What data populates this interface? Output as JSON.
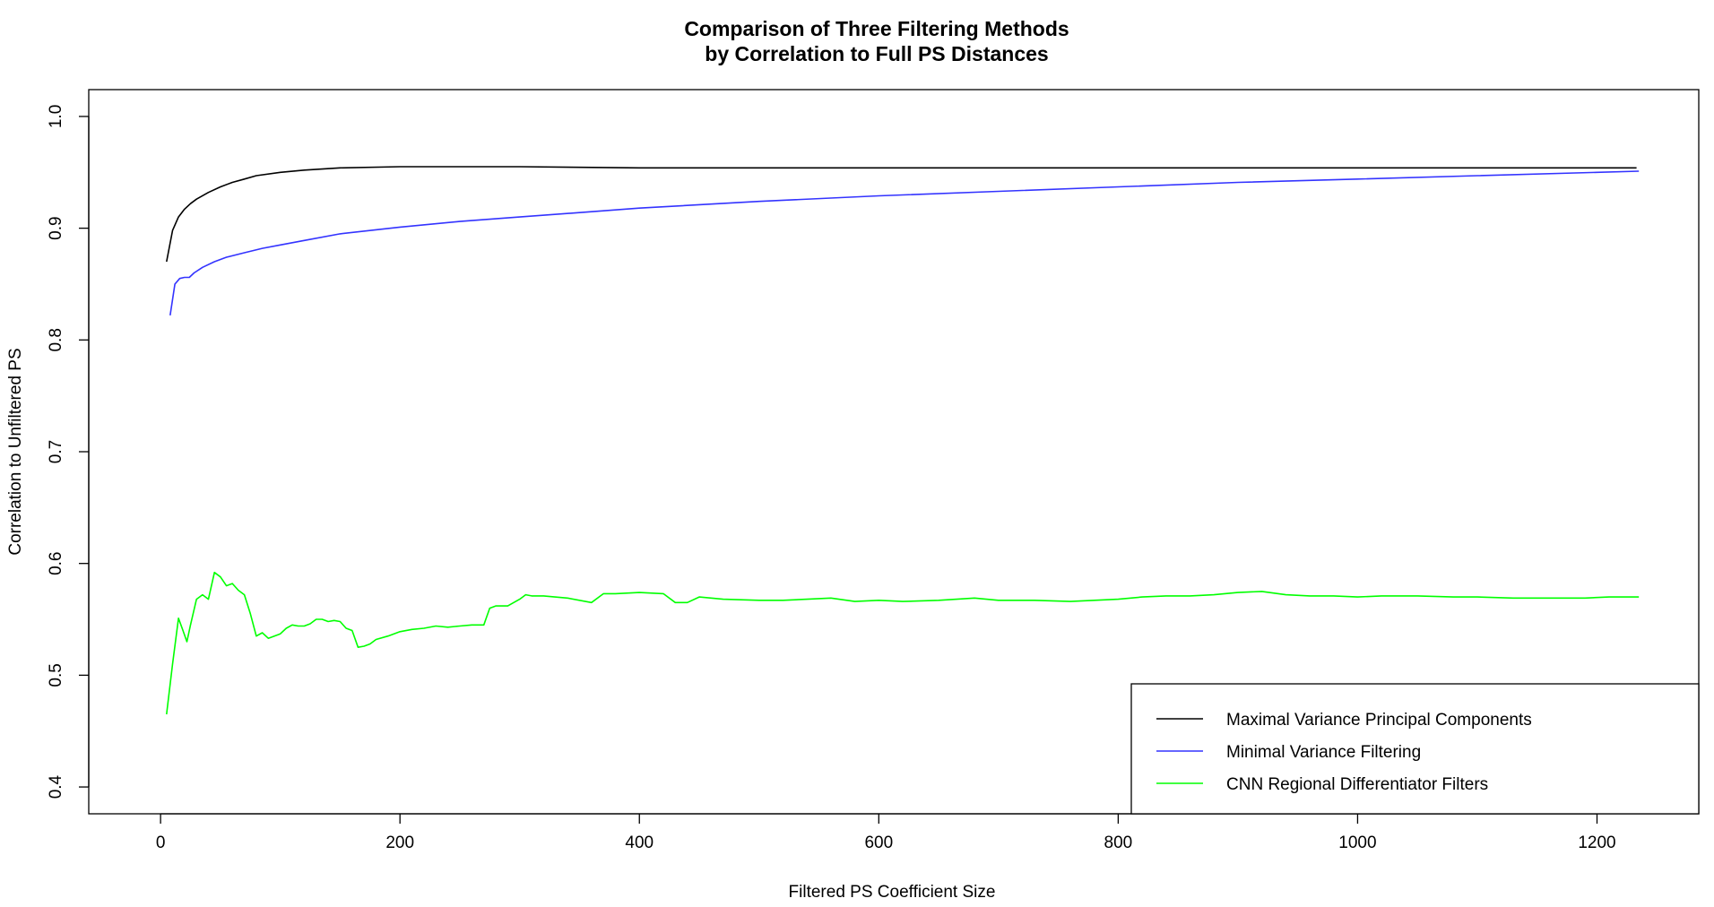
{
  "chart_data": {
    "type": "line",
    "title_line1": "Comparison of Three Filtering Methods",
    "title_line2": "by Correlation to Full PS Distances",
    "xlabel": "Filtered PS Coefficient Size",
    "ylabel": "Correlation to Unfiltered PS",
    "xlim": [
      -60,
      1285
    ],
    "ylim": [
      0.376,
      1.024
    ],
    "x_ticks": [
      0,
      200,
      400,
      600,
      800,
      1000,
      1200
    ],
    "y_ticks": [
      0.4,
      0.5,
      0.6,
      0.7,
      0.8,
      0.9,
      1.0
    ],
    "x_tick_labels": [
      "0",
      "200",
      "400",
      "600",
      "800",
      "1000",
      "1200"
    ],
    "y_tick_labels": [
      "0.4",
      "0.5",
      "0.6",
      "0.7",
      "0.8",
      "0.9",
      "1.0"
    ],
    "grid": false,
    "legend_position": "bottom-right",
    "series": [
      {
        "name": "Maximal Variance Principal Components",
        "color": "#000000",
        "x": [
          5,
          10,
          15,
          20,
          25,
          30,
          40,
          50,
          60,
          70,
          80,
          100,
          120,
          150,
          200,
          250,
          300,
          400,
          500,
          600,
          700,
          800,
          900,
          1000,
          1100,
          1200,
          1233
        ],
        "y": [
          0.87,
          0.898,
          0.91,
          0.917,
          0.922,
          0.926,
          0.932,
          0.937,
          0.941,
          0.944,
          0.947,
          0.95,
          0.952,
          0.954,
          0.955,
          0.955,
          0.955,
          0.954,
          0.954,
          0.954,
          0.954,
          0.954,
          0.954,
          0.954,
          0.954,
          0.954,
          0.954
        ]
      },
      {
        "name": "Minimal Variance Filtering",
        "color": "#3333ff",
        "x": [
          8,
          12,
          16,
          20,
          24,
          28,
          35,
          45,
          55,
          70,
          85,
          100,
          120,
          150,
          200,
          250,
          300,
          350,
          400,
          500,
          600,
          700,
          800,
          900,
          1000,
          1100,
          1200,
          1235
        ],
        "y": [
          0.822,
          0.85,
          0.855,
          0.856,
          0.856,
          0.86,
          0.865,
          0.87,
          0.874,
          0.878,
          0.882,
          0.885,
          0.889,
          0.895,
          0.901,
          0.906,
          0.91,
          0.914,
          0.918,
          0.924,
          0.929,
          0.933,
          0.937,
          0.941,
          0.944,
          0.947,
          0.95,
          0.951
        ]
      },
      {
        "name": "CNN Regional Differentiator Filters",
        "color": "#00ff00",
        "x": [
          5,
          10,
          15,
          18,
          22,
          25,
          30,
          35,
          40,
          45,
          50,
          55,
          60,
          65,
          70,
          75,
          80,
          85,
          90,
          95,
          100,
          105,
          110,
          115,
          120,
          125,
          130,
          135,
          140,
          145,
          150,
          155,
          160,
          165,
          170,
          175,
          180,
          190,
          200,
          210,
          220,
          230,
          240,
          250,
          260,
          270,
          275,
          280,
          290,
          300,
          305,
          310,
          320,
          340,
          360,
          370,
          380,
          400,
          420,
          430,
          440,
          450,
          470,
          500,
          520,
          540,
          560,
          580,
          600,
          620,
          650,
          680,
          700,
          730,
          760,
          780,
          800,
          820,
          840,
          860,
          880,
          900,
          920,
          940,
          960,
          980,
          1000,
          1020,
          1050,
          1080,
          1100,
          1130,
          1160,
          1190,
          1210,
          1235
        ],
        "y": [
          0.465,
          0.51,
          0.551,
          0.542,
          0.53,
          0.545,
          0.568,
          0.572,
          0.568,
          0.592,
          0.588,
          0.58,
          0.582,
          0.576,
          0.572,
          0.555,
          0.535,
          0.538,
          0.533,
          0.535,
          0.537,
          0.542,
          0.545,
          0.544,
          0.544,
          0.546,
          0.55,
          0.55,
          0.548,
          0.549,
          0.548,
          0.542,
          0.54,
          0.525,
          0.526,
          0.528,
          0.532,
          0.535,
          0.539,
          0.541,
          0.542,
          0.544,
          0.543,
          0.544,
          0.545,
          0.545,
          0.56,
          0.562,
          0.562,
          0.568,
          0.572,
          0.571,
          0.571,
          0.569,
          0.565,
          0.573,
          0.573,
          0.574,
          0.573,
          0.565,
          0.565,
          0.57,
          0.568,
          0.567,
          0.567,
          0.568,
          0.569,
          0.566,
          0.567,
          0.566,
          0.567,
          0.569,
          0.567,
          0.567,
          0.566,
          0.567,
          0.568,
          0.57,
          0.571,
          0.571,
          0.572,
          0.574,
          0.575,
          0.572,
          0.571,
          0.571,
          0.57,
          0.571,
          0.571,
          0.57,
          0.57,
          0.569,
          0.569,
          0.569,
          0.57,
          0.57
        ]
      }
    ]
  }
}
